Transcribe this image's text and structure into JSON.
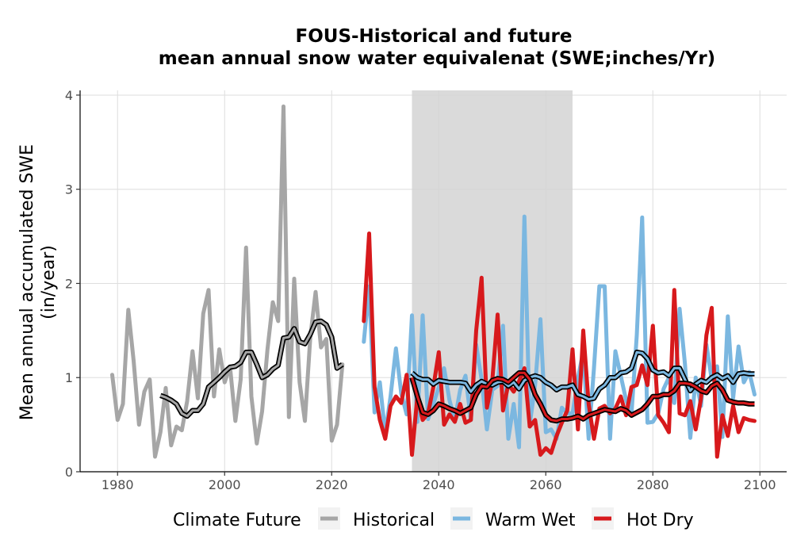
{
  "chart_data": {
    "type": "line",
    "title_line1": "FOUS-Historical and future",
    "title_line2": "mean annual snow water equivalenat (SWE;inches/Yr)",
    "ylabel_line1": "Mean annual accumulated SWE",
    "ylabel_line2": "(in/year)",
    "xlim": [
      1973,
      2105
    ],
    "ylim": [
      0,
      4.05
    ],
    "x_ticks": [
      1980,
      2000,
      2020,
      2040,
      2060,
      2080,
      2100
    ],
    "y_ticks": [
      0,
      1,
      2,
      3,
      4
    ],
    "grid": true,
    "reference_period": [
      2035,
      2065
    ],
    "legend_title": "Climate Future",
    "legend_position": "bottom",
    "series": [
      {
        "name": "Historical",
        "color": "#a6a6a6",
        "x": [
          1979,
          1980,
          1981,
          1982,
          1983,
          1984,
          1985,
          1986,
          1987,
          1988,
          1989,
          1990,
          1991,
          1992,
          1993,
          1994,
          1995,
          1996,
          1997,
          1998,
          1999,
          2000,
          2001,
          2002,
          2003,
          2004,
          2005,
          2006,
          2007,
          2008,
          2009,
          2010,
          2011,
          2012,
          2013,
          2014,
          2015,
          2016,
          2017,
          2018,
          2019,
          2020,
          2021,
          2022
        ],
        "y": [
          1.03,
          0.55,
          0.72,
          1.72,
          1.18,
          0.5,
          0.85,
          0.98,
          0.16,
          0.42,
          0.89,
          0.28,
          0.48,
          0.44,
          0.75,
          1.28,
          0.78,
          1.68,
          1.93,
          0.8,
          1.3,
          0.95,
          1.12,
          0.54,
          0.98,
          2.38,
          0.8,
          0.3,
          0.64,
          1.3,
          1.8,
          1.6,
          3.88,
          0.58,
          2.05,
          0.95,
          0.54,
          1.43,
          1.91,
          1.32,
          1.41,
          0.33,
          0.5,
          1.14
        ]
      },
      {
        "name": "Warm Wet",
        "color": "#7bb7e0",
        "x": [
          2026,
          2027,
          2028,
          2029,
          2030,
          2031,
          2032,
          2033,
          2034,
          2035,
          2036,
          2037,
          2038,
          2039,
          2040,
          2041,
          2042,
          2043,
          2044,
          2045,
          2046,
          2047,
          2048,
          2049,
          2050,
          2051,
          2052,
          2053,
          2054,
          2055,
          2056,
          2057,
          2058,
          2059,
          2060,
          2061,
          2062,
          2063,
          2064,
          2065,
          2066,
          2067,
          2068,
          2069,
          2070,
          2071,
          2072,
          2073,
          2074,
          2075,
          2076,
          2077,
          2078,
          2079,
          2080,
          2081,
          2082,
          2083,
          2084,
          2085,
          2086,
          2087,
          2088,
          2089,
          2090,
          2091,
          2092,
          2093,
          2094,
          2095,
          2096,
          2097,
          2098,
          2099
        ],
        "y": [
          1.38,
          1.97,
          0.63,
          0.95,
          0.4,
          0.8,
          1.31,
          0.83,
          0.61,
          1.66,
          0.53,
          1.66,
          0.56,
          0.72,
          0.9,
          1.1,
          0.76,
          0.55,
          0.87,
          1.02,
          0.55,
          1.35,
          0.98,
          0.45,
          0.87,
          0.91,
          1.55,
          0.35,
          0.72,
          0.26,
          2.71,
          0.5,
          0.92,
          1.62,
          0.42,
          0.45,
          0.35,
          0.68,
          0.62,
          0.62,
          0.99,
          1.28,
          0.35,
          1.1,
          1.97,
          1.97,
          0.35,
          1.28,
          1.02,
          0.76,
          0.61,
          1.45,
          2.7,
          0.52,
          0.53,
          0.62,
          0.88,
          1.0,
          0.73,
          1.73,
          1.14,
          0.36,
          1.0,
          0.7,
          1.35,
          0.98,
          1.12,
          0.37,
          1.65,
          0.78,
          1.33,
          0.95,
          1.06,
          0.82
        ]
      },
      {
        "name": "Hot Dry",
        "color": "#d7191c",
        "x": [
          2026,
          2027,
          2028,
          2029,
          2030,
          2031,
          2032,
          2033,
          2034,
          2035,
          2036,
          2037,
          2038,
          2039,
          2040,
          2041,
          2042,
          2043,
          2044,
          2045,
          2046,
          2047,
          2048,
          2049,
          2050,
          2051,
          2052,
          2053,
          2054,
          2055,
          2056,
          2057,
          2058,
          2059,
          2060,
          2061,
          2062,
          2063,
          2064,
          2065,
          2066,
          2067,
          2068,
          2069,
          2070,
          2071,
          2072,
          2073,
          2074,
          2075,
          2076,
          2077,
          2078,
          2079,
          2080,
          2081,
          2082,
          2083,
          2084,
          2085,
          2086,
          2087,
          2088,
          2089,
          2090,
          2091,
          2092,
          2093,
          2094,
          2095,
          2096,
          2097,
          2098,
          2099
        ],
        "y": [
          1.6,
          2.53,
          0.9,
          0.55,
          0.35,
          0.7,
          0.8,
          0.73,
          1.03,
          0.18,
          0.8,
          0.55,
          0.62,
          0.9,
          1.27,
          0.5,
          0.61,
          0.53,
          0.72,
          0.52,
          0.55,
          1.5,
          2.06,
          0.68,
          0.97,
          1.67,
          0.65,
          0.93,
          0.85,
          0.96,
          1.1,
          0.48,
          0.55,
          0.18,
          0.25,
          0.2,
          0.38,
          0.52,
          0.65,
          1.3,
          0.45,
          1.5,
          0.72,
          0.35,
          0.67,
          0.7,
          0.62,
          0.67,
          0.8,
          0.6,
          0.9,
          0.92,
          1.13,
          0.92,
          1.55,
          0.6,
          0.52,
          0.42,
          1.93,
          0.62,
          0.6,
          0.75,
          0.45,
          0.78,
          1.45,
          1.74,
          0.16,
          0.6,
          0.38,
          0.7,
          0.42,
          0.57,
          0.55,
          0.54
        ]
      }
    ],
    "smooth_lines": [
      {
        "series": "Historical",
        "x": [
          1988,
          1989,
          1990,
          1991,
          1992,
          1993,
          1994,
          1995,
          1996,
          1997,
          1998,
          1999,
          2000,
          2001,
          2002,
          2003,
          2004,
          2005,
          2006,
          2007,
          2008,
          2009,
          2010,
          2011,
          2012,
          2013,
          2014,
          2015,
          2016,
          2017,
          2018,
          2019,
          2020,
          2021,
          2022
        ],
        "y": [
          0.81,
          0.79,
          0.76,
          0.72,
          0.62,
          0.59,
          0.65,
          0.65,
          0.72,
          0.9,
          0.95,
          1.0,
          1.06,
          1.11,
          1.12,
          1.16,
          1.27,
          1.27,
          1.14,
          1.0,
          1.03,
          1.09,
          1.13,
          1.42,
          1.43,
          1.52,
          1.38,
          1.36,
          1.46,
          1.59,
          1.6,
          1.56,
          1.43,
          1.1,
          1.14
        ]
      },
      {
        "series": "Warm Wet",
        "x": [
          2035,
          2036,
          2037,
          2038,
          2039,
          2040,
          2041,
          2042,
          2043,
          2044,
          2045,
          2046,
          2047,
          2048,
          2049,
          2050,
          2051,
          2052,
          2053,
          2054,
          2055,
          2056,
          2057,
          2058,
          2059,
          2060,
          2061,
          2062,
          2063,
          2064,
          2065,
          2066,
          2067,
          2068,
          2069,
          2070,
          2071,
          2072,
          2073,
          2074,
          2075,
          2076,
          2077,
          2078,
          2079,
          2080,
          2081,
          2082,
          2083,
          2084,
          2085,
          2086,
          2087,
          2088,
          2089,
          2090,
          2091,
          2092,
          2093,
          2094,
          2095,
          2096,
          2097,
          2098,
          2099
        ],
        "y": [
          1.05,
          1.0,
          0.98,
          0.98,
          0.93,
          0.97,
          0.96,
          0.95,
          0.95,
          0.95,
          0.94,
          0.85,
          0.92,
          0.96,
          0.93,
          0.92,
          0.95,
          0.96,
          0.91,
          0.95,
          0.88,
          0.97,
          1.0,
          1.02,
          1.0,
          0.95,
          0.92,
          0.87,
          0.9,
          0.9,
          0.92,
          0.82,
          0.8,
          0.77,
          0.78,
          0.88,
          0.92,
          1.0,
          1.0,
          1.05,
          1.06,
          1.1,
          1.27,
          1.26,
          1.2,
          1.08,
          1.05,
          1.06,
          1.02,
          1.1,
          1.1,
          0.98,
          0.86,
          0.93,
          0.97,
          0.95,
          1.0,
          1.03,
          0.99,
          1.02,
          0.95,
          1.04,
          1.05,
          1.04,
          1.04
        ]
      },
      {
        "series": "Hot Dry",
        "x": [
          2035,
          2036,
          2037,
          2038,
          2039,
          2040,
          2041,
          2042,
          2043,
          2044,
          2045,
          2046,
          2047,
          2048,
          2049,
          2050,
          2051,
          2052,
          2053,
          2054,
          2055,
          2056,
          2057,
          2058,
          2059,
          2060,
          2061,
          2062,
          2063,
          2064,
          2065,
          2066,
          2067,
          2068,
          2069,
          2070,
          2071,
          2072,
          2073,
          2074,
          2075,
          2076,
          2077,
          2078,
          2079,
          2080,
          2081,
          2082,
          2083,
          2084,
          2085,
          2086,
          2087,
          2088,
          2089,
          2090,
          2091,
          2092,
          2093,
          2094,
          2095,
          2096,
          2097,
          2098,
          2099
        ],
        "y": [
          1.0,
          0.8,
          0.63,
          0.61,
          0.65,
          0.72,
          0.7,
          0.67,
          0.65,
          0.62,
          0.65,
          0.68,
          0.82,
          0.91,
          0.9,
          0.97,
          0.99,
          0.98,
          0.95,
          1.0,
          1.05,
          1.05,
          0.98,
          0.82,
          0.72,
          0.6,
          0.55,
          0.54,
          0.56,
          0.56,
          0.57,
          0.59,
          0.56,
          0.6,
          0.62,
          0.64,
          0.66,
          0.65,
          0.64,
          0.67,
          0.65,
          0.6,
          0.63,
          0.66,
          0.72,
          0.8,
          0.8,
          0.82,
          0.82,
          0.86,
          0.94,
          0.94,
          0.93,
          0.9,
          0.86,
          0.84,
          0.91,
          0.94,
          0.87,
          0.76,
          0.74,
          0.73,
          0.73,
          0.72,
          0.72
        ]
      }
    ]
  }
}
